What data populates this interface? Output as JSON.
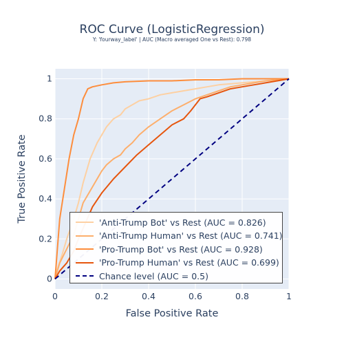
{
  "title": "ROC Curve (LogisticRegression)",
  "subtitle": "Y: 'fourway_label' | AUC (Macro averaged One vs Rest): 0.798",
  "colors": {
    "plot_bg": "#e5ecf6",
    "grid": "#ffffff",
    "text": "#2a3f5f",
    "chance": "#000080"
  },
  "chart_data": {
    "type": "line",
    "title": "ROC Curve (LogisticRegression)",
    "subtitle": "Y: 'fourway_label' | AUC (Macro averaged One vs Rest): 0.798",
    "xlabel": "False Positive Rate",
    "ylabel": "True Positive Rate",
    "xlim": [
      0,
      1
    ],
    "ylim": [
      -0.05,
      1.05
    ],
    "xticks": [
      "0",
      "0.2",
      "0.4",
      "0.6",
      "0.8",
      "1"
    ],
    "yticks": [
      "0",
      "0.2",
      "0.4",
      "0.6",
      "0.8",
      "1"
    ],
    "grid": true,
    "legend_position": "bottom-center",
    "series": [
      {
        "name": "'Anti-Trump Bot' vs Rest (AUC = 0.826)",
        "color": "#fdd0a2",
        "dash": "solid",
        "x": [
          0,
          0.01,
          0.03,
          0.05,
          0.08,
          0.1,
          0.12,
          0.15,
          0.18,
          0.2,
          0.22,
          0.25,
          0.28,
          0.3,
          0.33,
          0.36,
          0.4,
          0.45,
          0.5,
          0.55,
          0.6,
          0.65,
          0.7,
          0.8,
          0.9,
          1.0
        ],
        "y": [
          0,
          0.05,
          0.12,
          0.2,
          0.3,
          0.38,
          0.48,
          0.6,
          0.68,
          0.72,
          0.76,
          0.8,
          0.82,
          0.85,
          0.87,
          0.89,
          0.9,
          0.92,
          0.93,
          0.94,
          0.95,
          0.96,
          0.97,
          0.98,
          0.99,
          1.0
        ]
      },
      {
        "name": "'Anti-Trump Human' vs Rest (AUC = 0.741)",
        "color": "#fdae6b",
        "dash": "solid",
        "x": [
          0,
          0.02,
          0.05,
          0.08,
          0.1,
          0.12,
          0.15,
          0.18,
          0.2,
          0.22,
          0.25,
          0.28,
          0.3,
          0.33,
          0.36,
          0.4,
          0.45,
          0.5,
          0.55,
          0.6,
          0.65,
          0.7,
          0.75,
          0.8,
          0.9,
          1.0
        ],
        "y": [
          0,
          0.08,
          0.15,
          0.22,
          0.3,
          0.38,
          0.44,
          0.5,
          0.54,
          0.57,
          0.6,
          0.62,
          0.65,
          0.68,
          0.72,
          0.76,
          0.8,
          0.84,
          0.87,
          0.9,
          0.92,
          0.94,
          0.96,
          0.97,
          0.99,
          1.0
        ]
      },
      {
        "name": "'Pro-Trump Bot' vs Rest (AUC = 0.928)",
        "color": "#fd8d3c",
        "dash": "solid",
        "x": [
          0,
          0.01,
          0.02,
          0.04,
          0.06,
          0.08,
          0.1,
          0.12,
          0.14,
          0.16,
          0.2,
          0.25,
          0.3,
          0.4,
          0.5,
          0.6,
          0.7,
          0.8,
          0.9,
          1.0
        ],
        "y": [
          0,
          0.15,
          0.3,
          0.45,
          0.6,
          0.72,
          0.8,
          0.9,
          0.95,
          0.96,
          0.97,
          0.98,
          0.985,
          0.99,
          0.99,
          0.995,
          0.995,
          1.0,
          1.0,
          1.0
        ]
      },
      {
        "name": "'Pro-Trump Human' vs Rest (AUC = 0.699)",
        "color": "#e6550d",
        "dash": "solid",
        "x": [
          0,
          0.02,
          0.05,
          0.08,
          0.1,
          0.13,
          0.16,
          0.2,
          0.25,
          0.3,
          0.35,
          0.4,
          0.45,
          0.5,
          0.55,
          0.58,
          0.6,
          0.62,
          0.65,
          0.7,
          0.75,
          0.8,
          0.85,
          0.9,
          0.95,
          1.0
        ],
        "y": [
          0,
          0.04,
          0.08,
          0.14,
          0.2,
          0.28,
          0.36,
          0.43,
          0.5,
          0.56,
          0.62,
          0.67,
          0.72,
          0.77,
          0.8,
          0.84,
          0.87,
          0.9,
          0.91,
          0.93,
          0.95,
          0.96,
          0.97,
          0.98,
          0.99,
          1.0
        ]
      },
      {
        "name": "Chance level (AUC = 0.5)",
        "color": "#000080",
        "dash": "dash",
        "x": [
          0,
          1
        ],
        "y": [
          0,
          1
        ]
      }
    ]
  }
}
